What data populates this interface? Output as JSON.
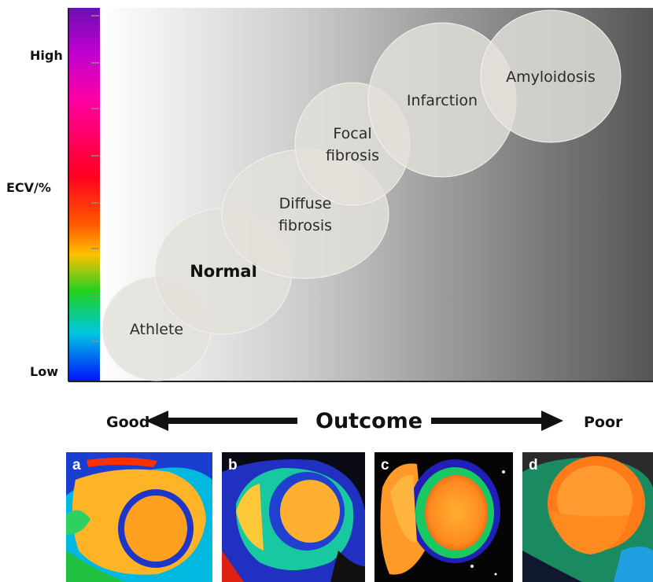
{
  "axis": {
    "high_label": "High",
    "mid_label": "ECV/%",
    "low_label": "Low"
  },
  "stages": [
    {
      "lines": [
        "Athlete"
      ],
      "emphasis": false
    },
    {
      "lines": [
        "Normal"
      ],
      "emphasis": true
    },
    {
      "lines": [
        "Diffuse",
        "fibrosis"
      ],
      "emphasis": false
    },
    {
      "lines": [
        "Focal",
        "fibrosis"
      ],
      "emphasis": false
    },
    {
      "lines": [
        "Infarction"
      ],
      "emphasis": false
    },
    {
      "lines": [
        "Amyloidosis"
      ],
      "emphasis": false
    }
  ],
  "outcome": {
    "title": "Outcome",
    "left": "Good",
    "right": "Poor"
  },
  "panels": [
    {
      "letter": "a"
    },
    {
      "letter": "b"
    },
    {
      "letter": "c"
    },
    {
      "letter": "d"
    }
  ],
  "colors": {
    "gradient_start": "#ffffff",
    "gradient_end": "#555555",
    "bubble_fill": "#e3e1d9",
    "colorbar": [
      "#6b0fb0",
      "#e000c8",
      "#ff0060",
      "#ff0000",
      "#ff6a00",
      "#ffd000",
      "#00d000",
      "#00c8ff",
      "#0000ff"
    ]
  }
}
